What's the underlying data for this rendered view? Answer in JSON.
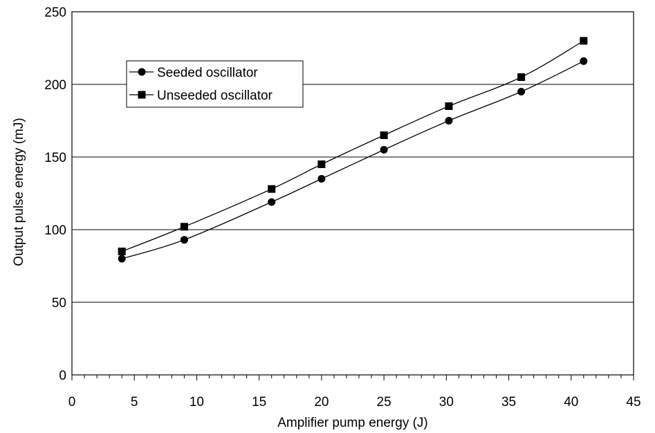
{
  "chart_data": {
    "type": "line",
    "xlabel": "Amplifier pump energy (J)",
    "ylabel": "Output pulse energy (mJ)",
    "xlim": [
      0,
      45
    ],
    "ylim": [
      0,
      250
    ],
    "x_ticks": [
      "0",
      "5",
      "10",
      "15",
      "20",
      "25",
      "30",
      "35",
      "40",
      "45"
    ],
    "y_ticks": [
      "0",
      "50",
      "100",
      "150",
      "200",
      "250"
    ],
    "grid": "horizontal",
    "legend_position": "top-left",
    "series": [
      {
        "name": "Seeded oscillator",
        "marker": "circle",
        "color": "#000000",
        "x": [
          4,
          9,
          16,
          20,
          25,
          30.2,
          36,
          41
        ],
        "y": [
          80,
          93,
          119,
          135,
          155,
          175,
          195,
          216
        ]
      },
      {
        "name": "Unseeded oscillator",
        "marker": "square",
        "color": "#000000",
        "x": [
          4,
          9,
          16,
          20,
          25,
          30.2,
          36,
          41
        ],
        "y": [
          85,
          102,
          128,
          145,
          165,
          185,
          205,
          230
        ]
      }
    ]
  }
}
